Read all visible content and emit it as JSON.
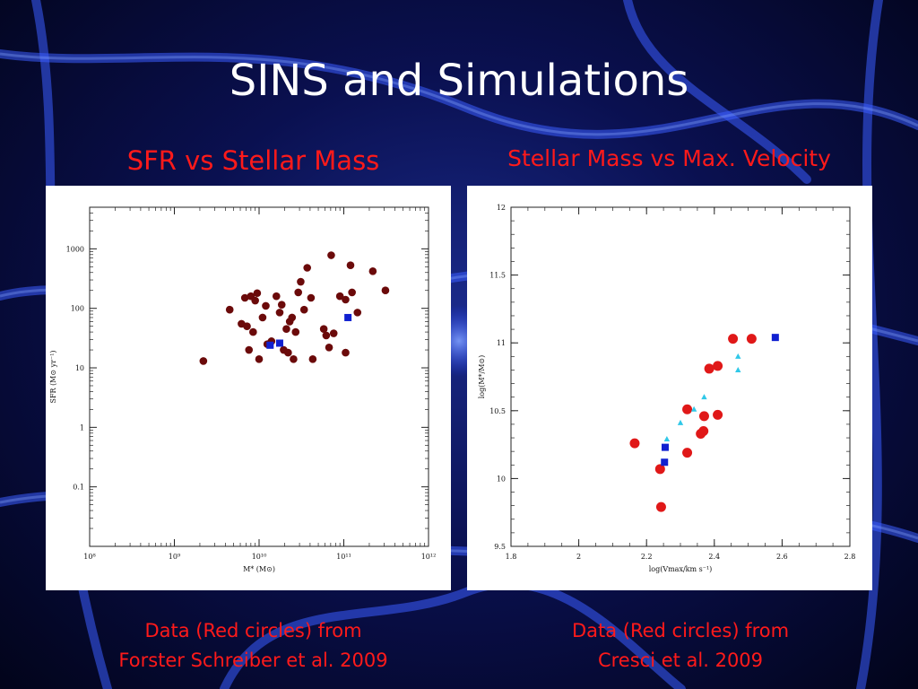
{
  "slide": {
    "title": "SINS and Simulations",
    "left_subtitle": "SFR vs Stellar Mass",
    "right_subtitle": "Stellar Mass vs Max. Velocity",
    "left_caption_line1": "Data (Red circles) from",
    "left_caption_line2": "Forster Schreiber et al. 2009",
    "right_caption_line1": "Data (Red circles) from",
    "right_caption_line2": "Cresci et al. 2009"
  },
  "colors": {
    "title": "#ffffff",
    "subtitle": "#ff1a1a",
    "red_points": "#e01818",
    "dark_red_points": "#6b0a0a",
    "blue_squares": "#1020d0",
    "cyan_triangles": "#30c8e8"
  },
  "chart_data": [
    {
      "type": "scatter",
      "xlabel": "M* (M⊙)",
      "ylabel": "SFR (M⊙ yr⁻¹)",
      "xscale": "log",
      "yscale": "log",
      "xlim": [
        100000000.0,
        1000000000000.0
      ],
      "ylim": [
        0.01,
        5000
      ],
      "xticks": [
        100000000.0,
        1000000000.0,
        10000000000.0,
        100000000000.0,
        1000000000000.0
      ],
      "xtick_labels": [
        "10⁸",
        "10⁹",
        "10¹⁰",
        "10¹¹",
        "10¹²"
      ],
      "yticks": [
        0.1,
        1,
        10,
        100,
        1000
      ],
      "ytick_labels": [
        "0.1",
        "1",
        "10",
        "100",
        "1000"
      ],
      "series": [
        {
          "marker": "circle",
          "color": "#6b0a0a",
          "points": [
            [
              2200000000.0,
              13
            ],
            [
              4500000000.0,
              95
            ],
            [
              6200000000.0,
              55
            ],
            [
              6800000000.0,
              150
            ],
            [
              7200000000.0,
              50
            ],
            [
              7600000000.0,
              20
            ],
            [
              8000000000.0,
              160
            ],
            [
              8500000000.0,
              40
            ],
            [
              9000000000.0,
              135
            ],
            [
              9500000000.0,
              180
            ],
            [
              10000000000.0,
              14
            ],
            [
              11000000000.0,
              70
            ],
            [
              12000000000.0,
              110
            ],
            [
              12500000000.0,
              25
            ],
            [
              14000000000.0,
              28
            ],
            [
              16000000000.0,
              160
            ],
            [
              17500000000.0,
              85
            ],
            [
              18500000000.0,
              115
            ],
            [
              19500000000.0,
              20
            ],
            [
              21000000000.0,
              45
            ],
            [
              22000000000.0,
              18
            ],
            [
              23000000000.0,
              60
            ],
            [
              24500000000.0,
              70
            ],
            [
              25500000000.0,
              14
            ],
            [
              27000000000.0,
              40
            ],
            [
              29000000000.0,
              185
            ],
            [
              31000000000.0,
              280
            ],
            [
              34000000000.0,
              95
            ],
            [
              37000000000.0,
              480
            ],
            [
              41000000000.0,
              150
            ],
            [
              43000000000.0,
              14
            ],
            [
              58000000000.0,
              45
            ],
            [
              62000000000.0,
              35
            ],
            [
              67000000000.0,
              22
            ],
            [
              71000000000.0,
              780
            ],
            [
              76000000000.0,
              38
            ],
            [
              90000000000.0,
              160
            ],
            [
              105000000000.0,
              140
            ],
            [
              105000000000.0,
              18
            ],
            [
              120000000000.0,
              530
            ],
            [
              125000000000.0,
              185
            ],
            [
              145000000000.0,
              85
            ],
            [
              220000000000.0,
              420
            ],
            [
              310000000000.0,
              200
            ]
          ]
        },
        {
          "marker": "square",
          "color": "#1020d0",
          "points": [
            [
              13500000000.0,
              24
            ],
            [
              17500000000.0,
              26
            ],
            [
              112000000000.0,
              70
            ]
          ]
        }
      ]
    },
    {
      "type": "scatter",
      "xlabel": "log(Vmax/km s⁻¹)",
      "ylabel": "log(M*/M⊙)",
      "xlim": [
        1.8,
        2.8
      ],
      "ylim": [
        9.5,
        12
      ],
      "xticks": [
        1.8,
        2,
        2.2,
        2.4,
        2.6,
        2.8
      ],
      "xtick_labels": [
        "1.8",
        "2",
        "2.2",
        "2.4",
        "2.6",
        "2.8"
      ],
      "yticks": [
        9.5,
        10,
        10.5,
        11,
        11.5,
        12
      ],
      "ytick_labels": [
        "9.5",
        "10",
        "10.5",
        "11",
        "11.5",
        "12"
      ],
      "series": [
        {
          "marker": "circle",
          "color": "#e01818",
          "points": [
            [
              2.165,
              10.26
            ],
            [
              2.24,
              10.07
            ],
            [
              2.243,
              9.79
            ],
            [
              2.32,
              10.51
            ],
            [
              2.32,
              10.19
            ],
            [
              2.36,
              10.33
            ],
            [
              2.368,
              10.35
            ],
            [
              2.37,
              10.46
            ],
            [
              2.385,
              10.81
            ],
            [
              2.41,
              10.83
            ],
            [
              2.41,
              10.47
            ],
            [
              2.455,
              11.03
            ],
            [
              2.51,
              11.03
            ]
          ]
        },
        {
          "marker": "square",
          "color": "#1020d0",
          "points": [
            [
              2.255,
              10.23
            ],
            [
              2.253,
              10.12
            ],
            [
              2.58,
              11.04
            ]
          ]
        },
        {
          "marker": "triangle",
          "color": "#30c8e8",
          "points": [
            [
              2.26,
              10.29
            ],
            [
              2.3,
              10.41
            ],
            [
              2.34,
              10.51
            ],
            [
              2.37,
              10.6
            ],
            [
              2.47,
              10.9
            ],
            [
              2.47,
              10.8
            ]
          ]
        }
      ]
    }
  ]
}
